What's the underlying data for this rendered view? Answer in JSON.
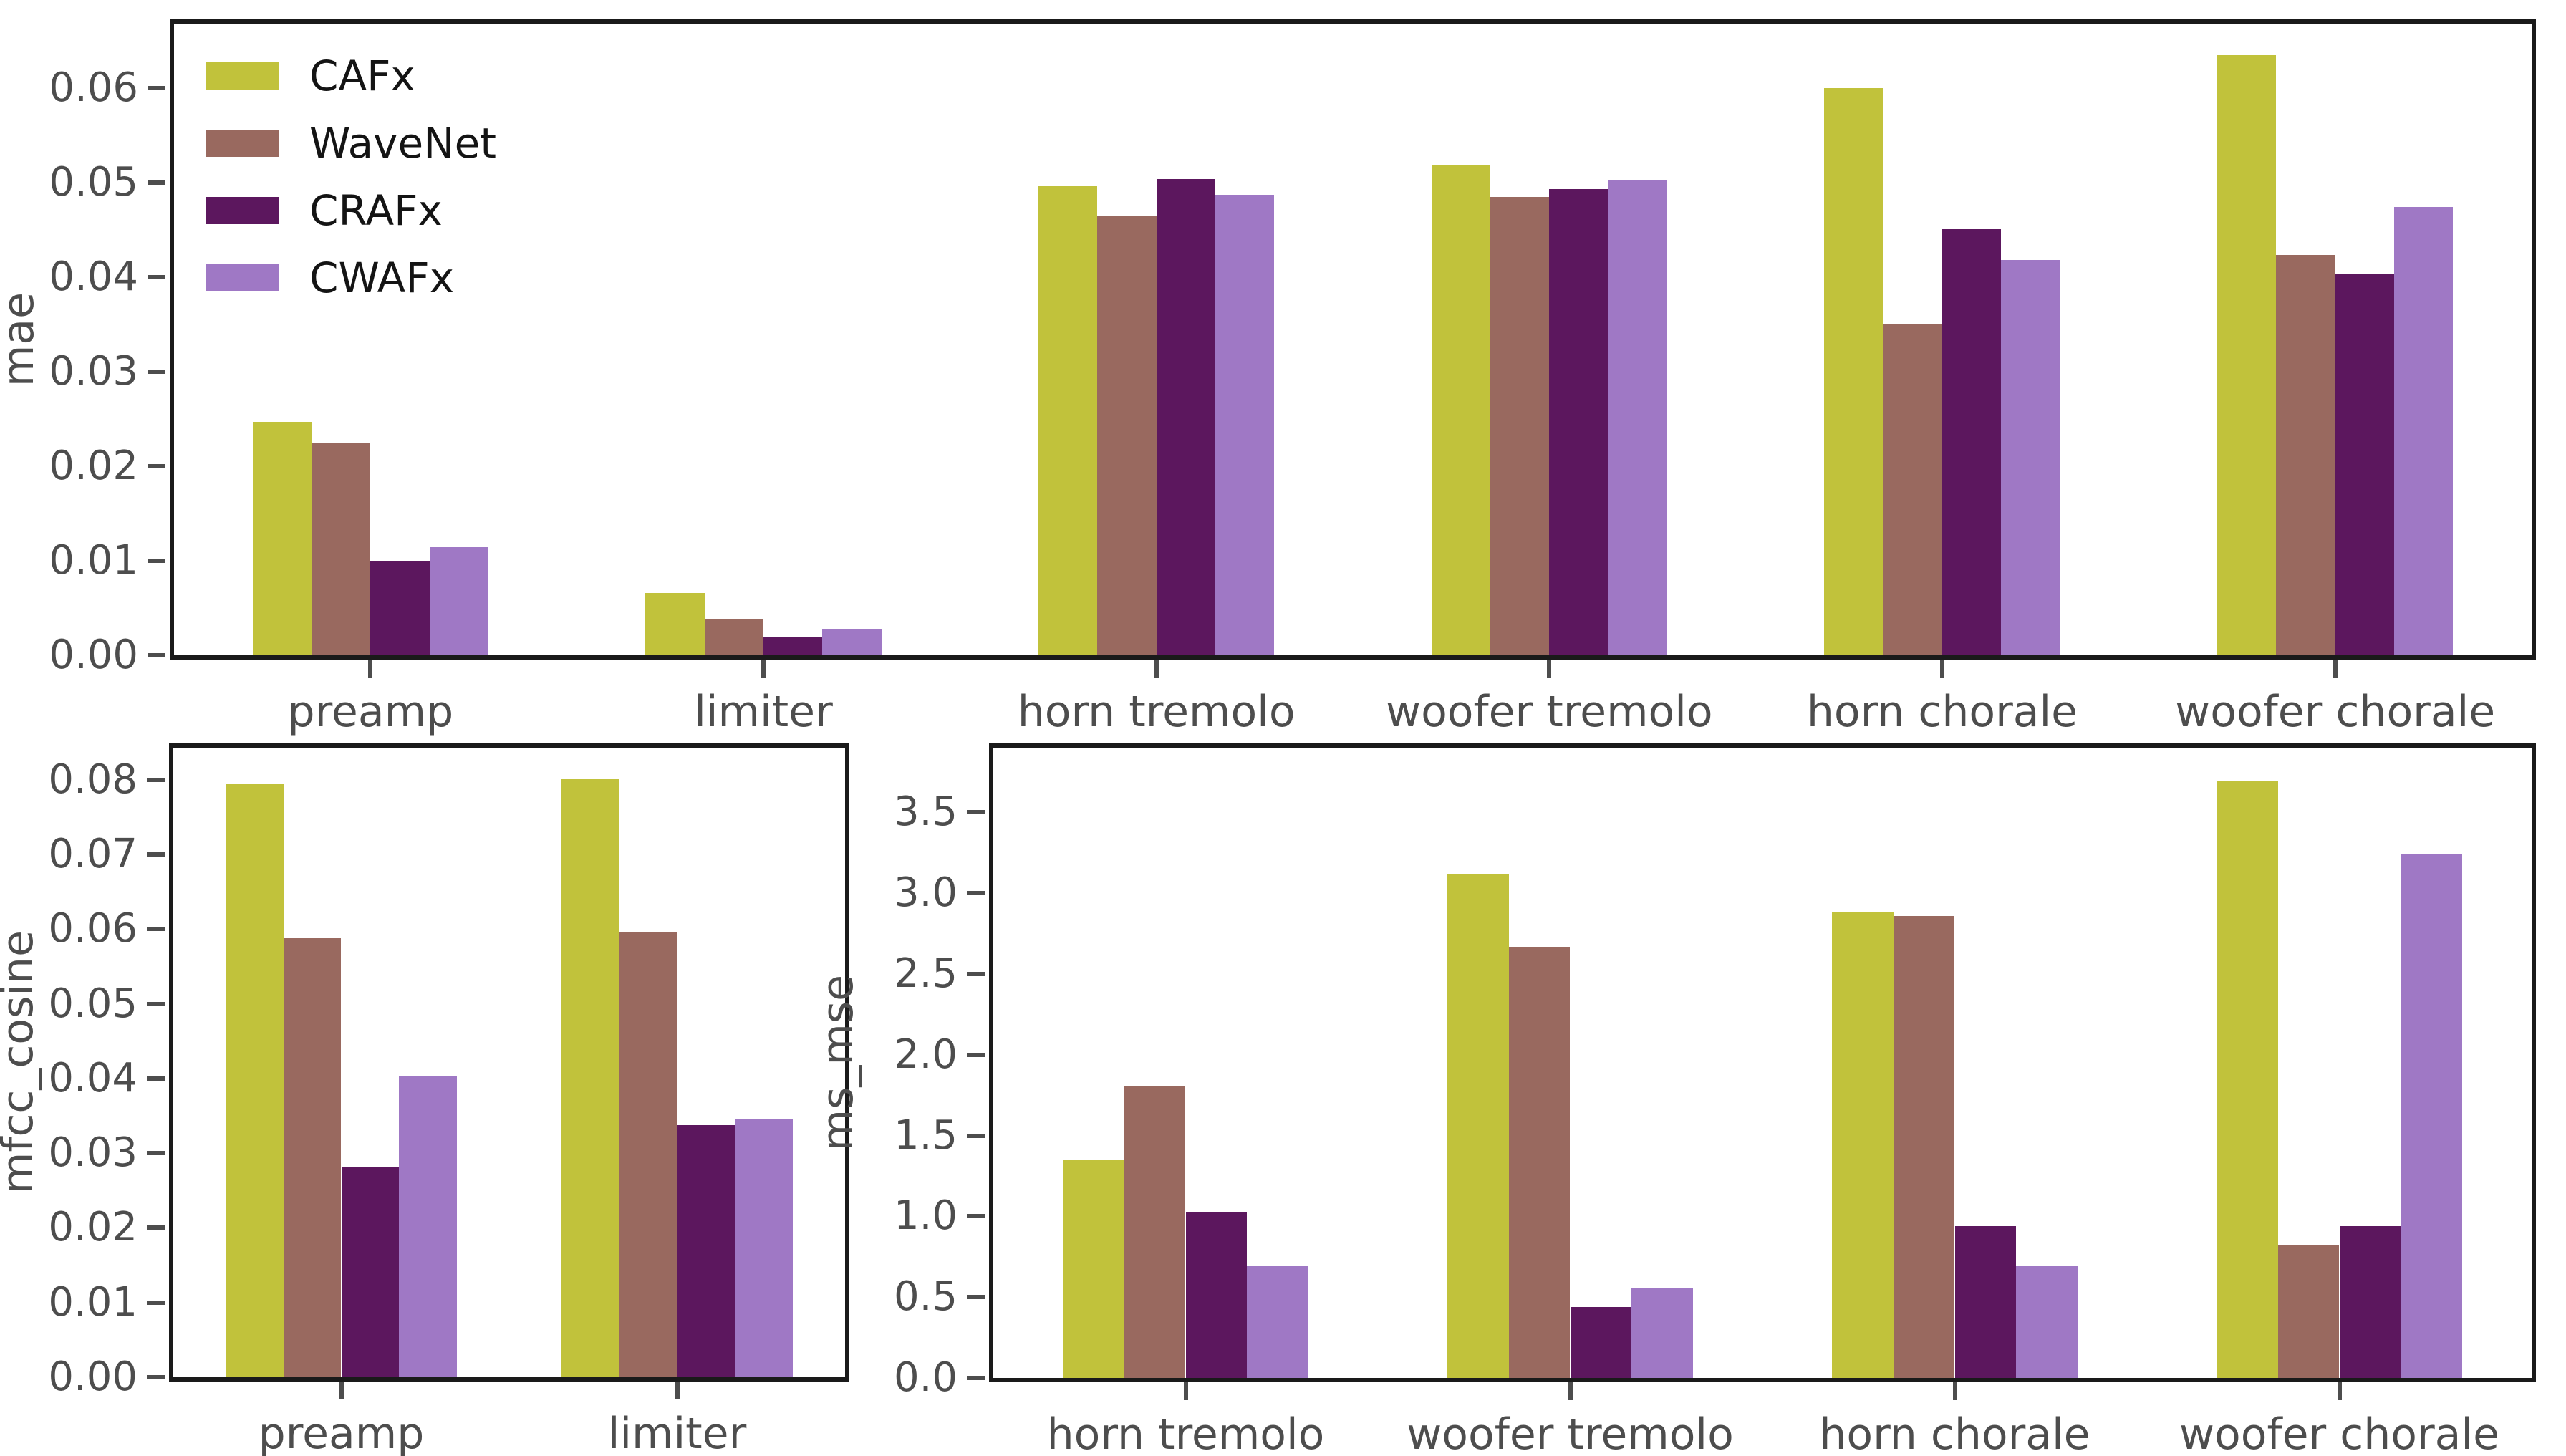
{
  "figure": {
    "background": "#ffffff",
    "spine_color": "#1a1a1a",
    "tick_color": "#4d4d4d",
    "label_color": "#4d4d4d",
    "legend_text_color": "#141414"
  },
  "legend": {
    "position": "upper-left-of-mae-chart",
    "items": [
      {
        "label": "CAFx",
        "color": "#c1c23b"
      },
      {
        "label": "WaveNet",
        "color": "#99695f"
      },
      {
        "label": "CRAFx",
        "color": "#5c175e"
      },
      {
        "label": "CWAFx",
        "color": "#9f78c5"
      }
    ]
  },
  "chart_data": [
    {
      "type": "bar",
      "name": "mae",
      "ylabel": "mae",
      "xlabel": "",
      "grid": false,
      "legend_visible": true,
      "bar_width_frac": 0.15,
      "categories": [
        "preamp",
        "limiter",
        "horn tremolo",
        "woofer tremolo",
        "horn chorale",
        "woofer chorale"
      ],
      "series": [
        {
          "name": "CAFx",
          "color": "#c1c23b",
          "values": [
            0.0247,
            0.0066,
            0.0496,
            0.0518,
            0.06,
            0.0635
          ]
        },
        {
          "name": "WaveNet",
          "color": "#99695f",
          "values": [
            0.0224,
            0.0039,
            0.0465,
            0.0485,
            0.0351,
            0.0423
          ]
        },
        {
          "name": "CRAFx",
          "color": "#5c175e",
          "values": [
            0.01,
            0.0019,
            0.0504,
            0.0493,
            0.0451,
            0.0403
          ]
        },
        {
          "name": "CWAFx",
          "color": "#9f78c5",
          "values": [
            0.0114,
            0.0028,
            0.0487,
            0.0502,
            0.0418,
            0.0474
          ]
        }
      ],
      "ylim": [
        0,
        0.0668
      ],
      "yticks": [
        {
          "value": 0.0,
          "label": "0.00"
        },
        {
          "value": 0.01,
          "label": "0.01"
        },
        {
          "value": 0.02,
          "label": "0.02"
        },
        {
          "value": 0.03,
          "label": "0.03"
        },
        {
          "value": 0.04,
          "label": "0.04"
        },
        {
          "value": 0.05,
          "label": "0.05"
        },
        {
          "value": 0.06,
          "label": "0.06"
        }
      ]
    },
    {
      "type": "bar",
      "name": "mfcc_cosine",
      "ylabel": "mfcc_cosine",
      "xlabel": "",
      "grid": false,
      "legend_visible": false,
      "bar_width_frac": 0.172,
      "categories": [
        "preamp",
        "limiter"
      ],
      "series": [
        {
          "name": "CAFx",
          "color": "#c1c23b",
          "values": [
            0.0795,
            0.0801
          ]
        },
        {
          "name": "WaveNet",
          "color": "#99695f",
          "values": [
            0.0588,
            0.0596
          ]
        },
        {
          "name": "CRAFx",
          "color": "#5c175e",
          "values": [
            0.0281,
            0.0338
          ]
        },
        {
          "name": "CWAFx",
          "color": "#9f78c5",
          "values": [
            0.0403,
            0.0346
          ]
        }
      ],
      "ylim": [
        0,
        0.0843
      ],
      "yticks": [
        {
          "value": 0.0,
          "label": "0.00"
        },
        {
          "value": 0.01,
          "label": "0.01"
        },
        {
          "value": 0.02,
          "label": "0.02"
        },
        {
          "value": 0.03,
          "label": "0.03"
        },
        {
          "value": 0.04,
          "label": "0.04"
        },
        {
          "value": 0.05,
          "label": "0.05"
        },
        {
          "value": 0.06,
          "label": "0.06"
        },
        {
          "value": 0.07,
          "label": "0.07"
        },
        {
          "value": 0.08,
          "label": "0.08"
        }
      ]
    },
    {
      "type": "bar",
      "name": "ms_mse",
      "ylabel": "ms_mse",
      "xlabel": "",
      "grid": false,
      "legend_visible": false,
      "bar_width_frac": 0.16,
      "categories": [
        "horn tremolo",
        "woofer tremolo",
        "horn chorale",
        "woofer chorale"
      ],
      "series": [
        {
          "name": "CAFx",
          "color": "#c1c23b",
          "values": [
            1.35,
            3.12,
            2.88,
            3.69
          ]
        },
        {
          "name": "WaveNet",
          "color": "#99695f",
          "values": [
            1.81,
            2.67,
            2.86,
            0.82
          ]
        },
        {
          "name": "CRAFx",
          "color": "#5c175e",
          "values": [
            1.03,
            0.44,
            0.94,
            0.94
          ]
        },
        {
          "name": "CWAFx",
          "color": "#9f78c5",
          "values": [
            0.69,
            0.56,
            0.69,
            3.24
          ]
        }
      ],
      "ylim": [
        0,
        3.9
      ],
      "yticks": [
        {
          "value": 0.0,
          "label": "0.0"
        },
        {
          "value": 0.5,
          "label": "0.5"
        },
        {
          "value": 1.0,
          "label": "1.0"
        },
        {
          "value": 1.5,
          "label": "1.5"
        },
        {
          "value": 2.0,
          "label": "2.0"
        },
        {
          "value": 2.5,
          "label": "2.5"
        },
        {
          "value": 3.0,
          "label": "3.0"
        },
        {
          "value": 3.5,
          "label": "3.5"
        }
      ]
    }
  ]
}
